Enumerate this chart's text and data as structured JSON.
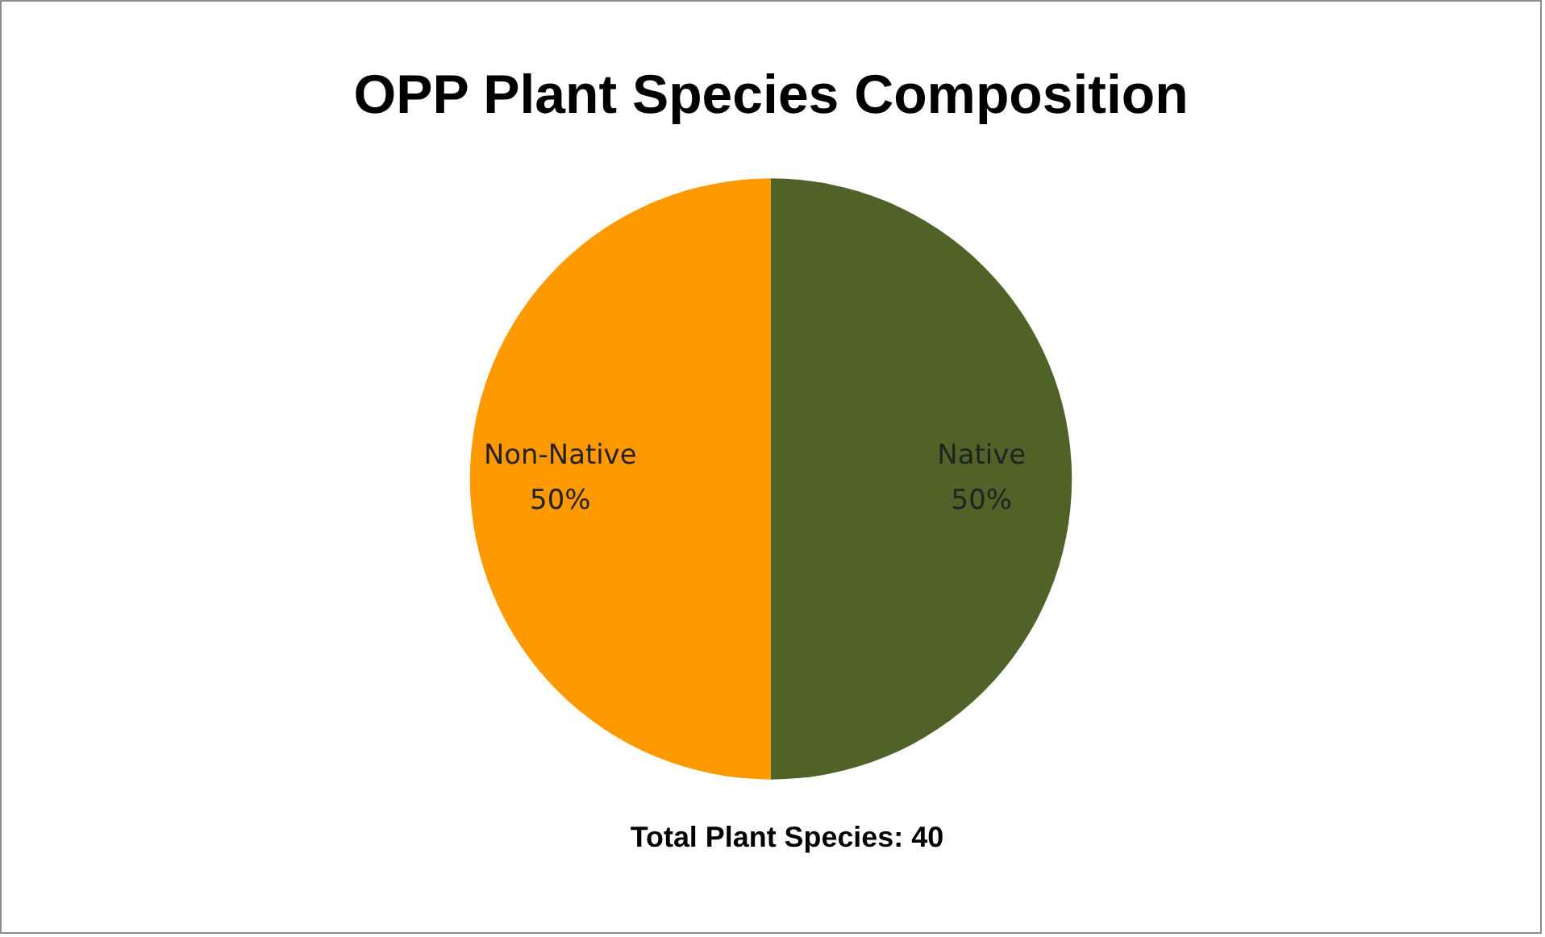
{
  "chart_data": {
    "type": "pie",
    "title": "OPP Plant Species Composition",
    "categories": [
      "Native",
      "Non-Native"
    ],
    "values": [
      50,
      50
    ],
    "colors": [
      "#4f6228",
      "#ff9900"
    ],
    "value_labels": [
      "50%",
      "50%"
    ],
    "annotations": [
      "Total Plant Species: 40"
    ],
    "legend": false
  }
}
